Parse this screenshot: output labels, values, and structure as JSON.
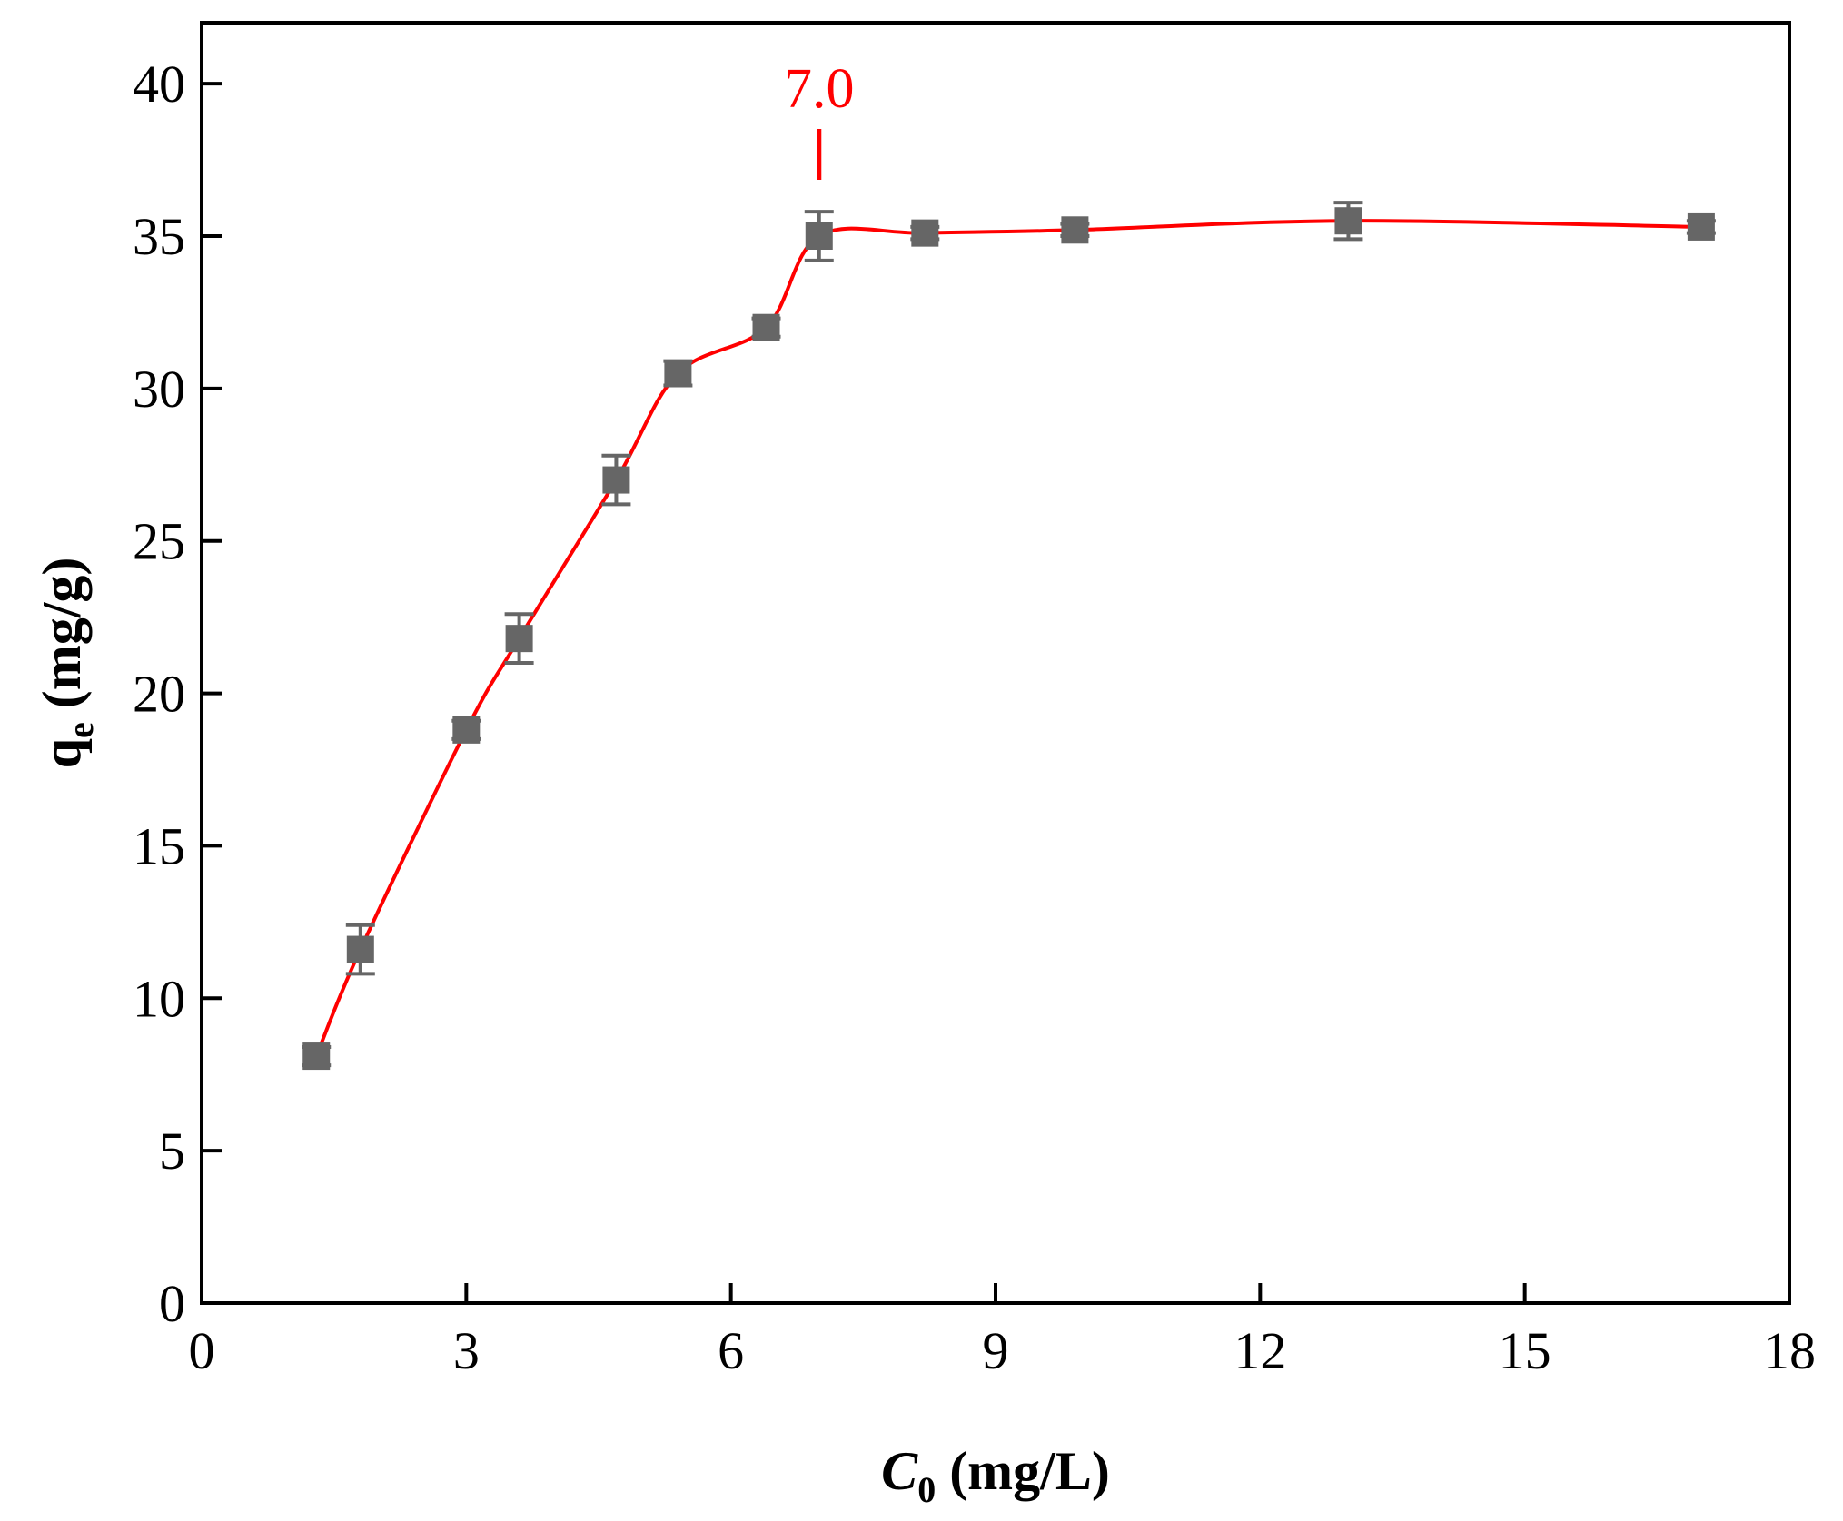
{
  "chart_data": {
    "type": "scatter",
    "title": "",
    "xlabel": {
      "main": "C",
      "sub": "0",
      "unit": " (mg/L)"
    },
    "ylabel": {
      "main": "q",
      "sub": "e",
      "unit": " (mg/g)"
    },
    "xlim": [
      0,
      18
    ],
    "ylim": [
      0,
      42
    ],
    "xticks": [
      0,
      3,
      6,
      9,
      12,
      15,
      18
    ],
    "yticks": [
      0,
      5,
      10,
      15,
      20,
      25,
      30,
      35,
      40
    ],
    "grid": false,
    "legend": "none",
    "series": [
      {
        "x": [
          1.3,
          1.8,
          3.0,
          3.6,
          4.7,
          5.4,
          6.4,
          7.0,
          8.2,
          9.9,
          13.0,
          17.0
        ],
        "y": [
          8.1,
          11.6,
          18.8,
          21.8,
          27.0,
          30.5,
          32.0,
          35.0,
          35.1,
          35.2,
          35.5,
          35.3
        ],
        "error": [
          0.3,
          0.8,
          0.3,
          0.8,
          0.8,
          0.4,
          0.3,
          0.8,
          0.2,
          0.2,
          0.6,
          0.2
        ],
        "marker_color": "#666666",
        "line_color": "#ff0000"
      }
    ],
    "annotations": [
      {
        "text": "7.0",
        "x": 7.0,
        "color": "#ff0000"
      }
    ]
  }
}
